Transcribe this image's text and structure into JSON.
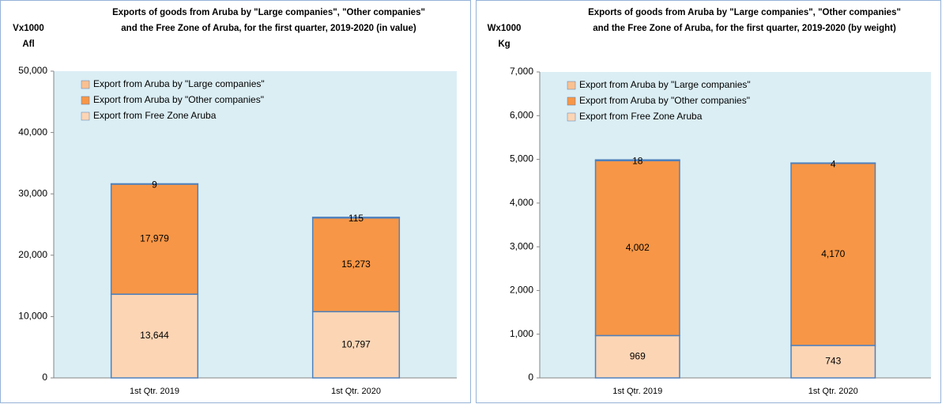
{
  "chart_data": [
    {
      "type": "stacked_bar",
      "title": [
        "Exports of goods from Aruba by \"Large companies\", \"Other companies\"",
        "and the Free Zone of Aruba, for the first quarter, 2019-2020 (in value)"
      ],
      "y_label": [
        "Vx1000",
        "Afl"
      ],
      "categories": [
        "1st Qtr. 2019",
        "1st Qtr. 2020"
      ],
      "ylim": [
        0,
        50000
      ],
      "yticks": [
        0,
        {
          "value": 10000,
          "label": "10,000"
        },
        {
          "value": 20000,
          "label": "20,000"
        },
        {
          "value": 30000,
          "label": "30,000"
        },
        {
          "value": 40000,
          "label": "40,000"
        },
        {
          "value": 50000,
          "label": "50,000"
        }
      ],
      "legend": "upper left",
      "series": [
        {
          "name": "Export from Aruba by \"Large companies\"",
          "color": "#fac090",
          "values": [
            9,
            115
          ]
        },
        {
          "name": "Export from Aruba by \"Other companies\"",
          "color": "#f79646",
          "values": [
            17979,
            15273
          ],
          "value_labels": [
            "17,979",
            "15,273"
          ]
        },
        {
          "name": "Export from Free Zone Aruba",
          "color": "#fcd5b5",
          "values": [
            13644,
            10797
          ],
          "value_labels": [
            "13,644",
            "10,797"
          ]
        }
      ]
    },
    {
      "type": "stacked_bar",
      "title": [
        "Exports of goods from Aruba by \"Large companies\", \"Other companies\"",
        "and the Free Zone of Aruba, for the first quarter, 2019-2020 (by weight)"
      ],
      "y_label": [
        "Wx1000",
        "Kg"
      ],
      "categories": [
        "1st Qtr. 2019",
        "1st Qtr. 2020"
      ],
      "ylim": [
        0,
        7000
      ],
      "yticks": [
        0,
        {
          "value": 1000,
          "label": "1,000"
        },
        {
          "value": 2000,
          "label": "2,000"
        },
        {
          "value": 3000,
          "label": "3,000"
        },
        {
          "value": 4000,
          "label": "4,000"
        },
        {
          "value": 5000,
          "label": "5,000"
        },
        {
          "value": 6000,
          "label": "6,000"
        },
        {
          "value": 7000,
          "label": "7,000"
        }
      ],
      "legend": "upper left",
      "series": [
        {
          "name": "Export from Aruba by \"Large companies\"",
          "color": "#fac090",
          "values": [
            18,
            4
          ]
        },
        {
          "name": "Export from Aruba by \"Other companies\"",
          "color": "#f79646",
          "values": [
            4002,
            4170
          ],
          "value_labels": [
            "4,002",
            "4,170"
          ]
        },
        {
          "name": "Export from Free Zone Aruba",
          "color": "#fcd5b5",
          "values": [
            969,
            743
          ]
        }
      ]
    }
  ]
}
